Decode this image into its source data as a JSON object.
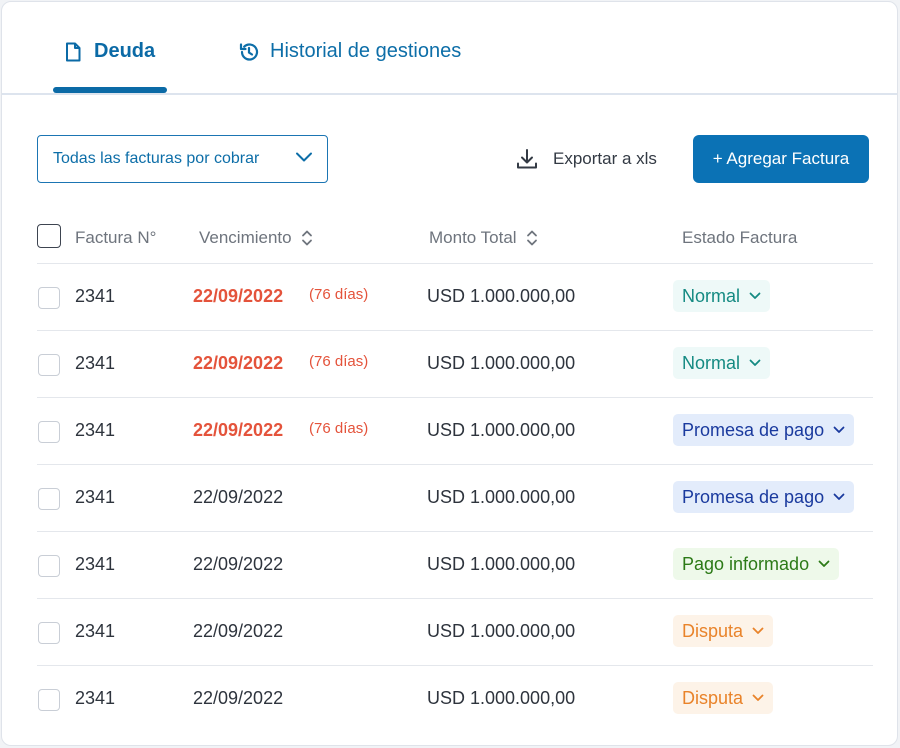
{
  "tabs": [
    {
      "label": "Deuda",
      "icon": "document-icon",
      "active": true
    },
    {
      "label": "Historial de gestiones",
      "icon": "history-icon",
      "active": false
    }
  ],
  "toolbar": {
    "filter_value": "Todas las facturas por cobrar",
    "export_label": "Exportar a xls",
    "add_label": "+ Agregar Factura"
  },
  "table": {
    "headers": {
      "number": "Factura N°",
      "due": "Vencimiento",
      "amount": "Monto Total",
      "status": "Estado Factura"
    },
    "rows": [
      {
        "number": "2341",
        "due": "22/09/2022",
        "days": "(76 días)",
        "amount": "USD 1.000.000,00",
        "status": "Normal"
      },
      {
        "number": "2341",
        "due": "22/09/2022",
        "days": "(76 días)",
        "amount": "USD 1.000.000,00",
        "status": "Normal"
      },
      {
        "number": "2341",
        "due": "22/09/2022",
        "days": "(76 días)",
        "amount": "USD 1.000.000,00",
        "status": "Promesa de pago"
      },
      {
        "number": "2341",
        "due": "22/09/2022",
        "days": "",
        "amount": "USD 1.000.000,00",
        "status": "Promesa de pago"
      },
      {
        "number": "2341",
        "due": "22/09/2022",
        "days": "",
        "amount": "USD 1.000.000,00",
        "status": "Pago informado"
      },
      {
        "number": "2341",
        "due": "22/09/2022",
        "days": "",
        "amount": "USD 1.000.000,00",
        "status": "Disputa"
      },
      {
        "number": "2341",
        "due": "22/09/2022",
        "days": "",
        "amount": "USD 1.000.000,00",
        "status": "Disputa"
      }
    ]
  },
  "colors": {
    "primary": "#0b72b5",
    "overdue": "#e4533b",
    "normal": "#148a82",
    "promesa": "#1a3a9e",
    "pago_informado": "#2c7a17",
    "disputa": "#e9832a"
  }
}
